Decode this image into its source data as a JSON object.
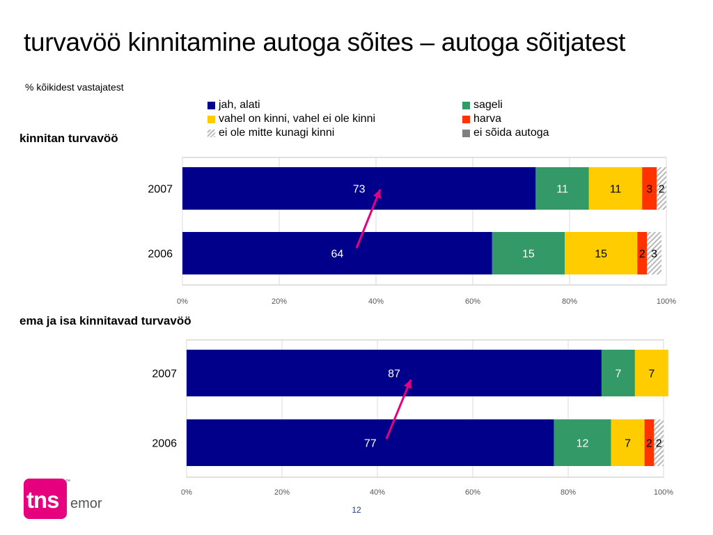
{
  "title": "turvavöö kinnitamine autoga sõites – autoga sõitjatest",
  "subtitle": "% kõikidest vastajatest",
  "legend": [
    {
      "label": "jah, alati",
      "color": "#00008b"
    },
    {
      "label": "sageli",
      "color": "#339966"
    },
    {
      "label": "vahel on kinni, vahel ei ole kinni",
      "color": "#ffcc00"
    },
    {
      "label": "harva",
      "color": "#ff3300"
    },
    {
      "label": "ei ole mitte kunagi kinni",
      "color": "hatch"
    },
    {
      "label": "ei sõida autoga",
      "color": "#808080"
    }
  ],
  "chart_data": [
    {
      "type": "bar",
      "orientation": "horizontal-stacked-100",
      "title": "kinnitan turvavöö",
      "categories": [
        "2007",
        "2006"
      ],
      "series": [
        {
          "name": "jah, alati",
          "values": [
            73,
            64
          ],
          "color": "#00008b"
        },
        {
          "name": "sageli",
          "values": [
            11,
            15
          ],
          "color": "#339966"
        },
        {
          "name": "vahel on kinni, vahel ei ole kinni",
          "values": [
            11,
            15
          ],
          "color": "#ffcc00"
        },
        {
          "name": "harva",
          "values": [
            3,
            2
          ],
          "color": "#ff3300"
        },
        {
          "name": "ei ole mitte kunagi kinni",
          "values": [
            2,
            3
          ],
          "color": "hatch"
        }
      ],
      "x_ticks": [
        "0%",
        "20%",
        "40%",
        "60%",
        "80%",
        "100%"
      ],
      "xlim": [
        0,
        100
      ],
      "grid": true
    },
    {
      "type": "bar",
      "orientation": "horizontal-stacked-100",
      "title": "ema ja isa kinnitavad turvavöö",
      "categories": [
        "2007",
        "2006"
      ],
      "series": [
        {
          "name": "jah, alati",
          "values": [
            87,
            77
          ],
          "color": "#00008b"
        },
        {
          "name": "sageli",
          "values": [
            7,
            12
          ],
          "color": "#339966"
        },
        {
          "name": "vahel on kinni, vahel ei ole kinni",
          "values": [
            7,
            7
          ],
          "color": "#ffcc00"
        },
        {
          "name": "harva",
          "values": [
            0,
            2
          ],
          "color": "#ff3300"
        },
        {
          "name": "ei ole mitte kunagi kinni",
          "values": [
            0,
            2
          ],
          "color": "hatch"
        }
      ],
      "x_ticks": [
        "0%",
        "20%",
        "40%",
        "60%",
        "80%",
        "100%"
      ],
      "xlim": [
        0,
        100
      ],
      "grid": true
    }
  ],
  "logo": {
    "brand": "tns",
    "suffix": "emor",
    "trademark": "™",
    "color": "#e6007e"
  },
  "page_number": "12"
}
